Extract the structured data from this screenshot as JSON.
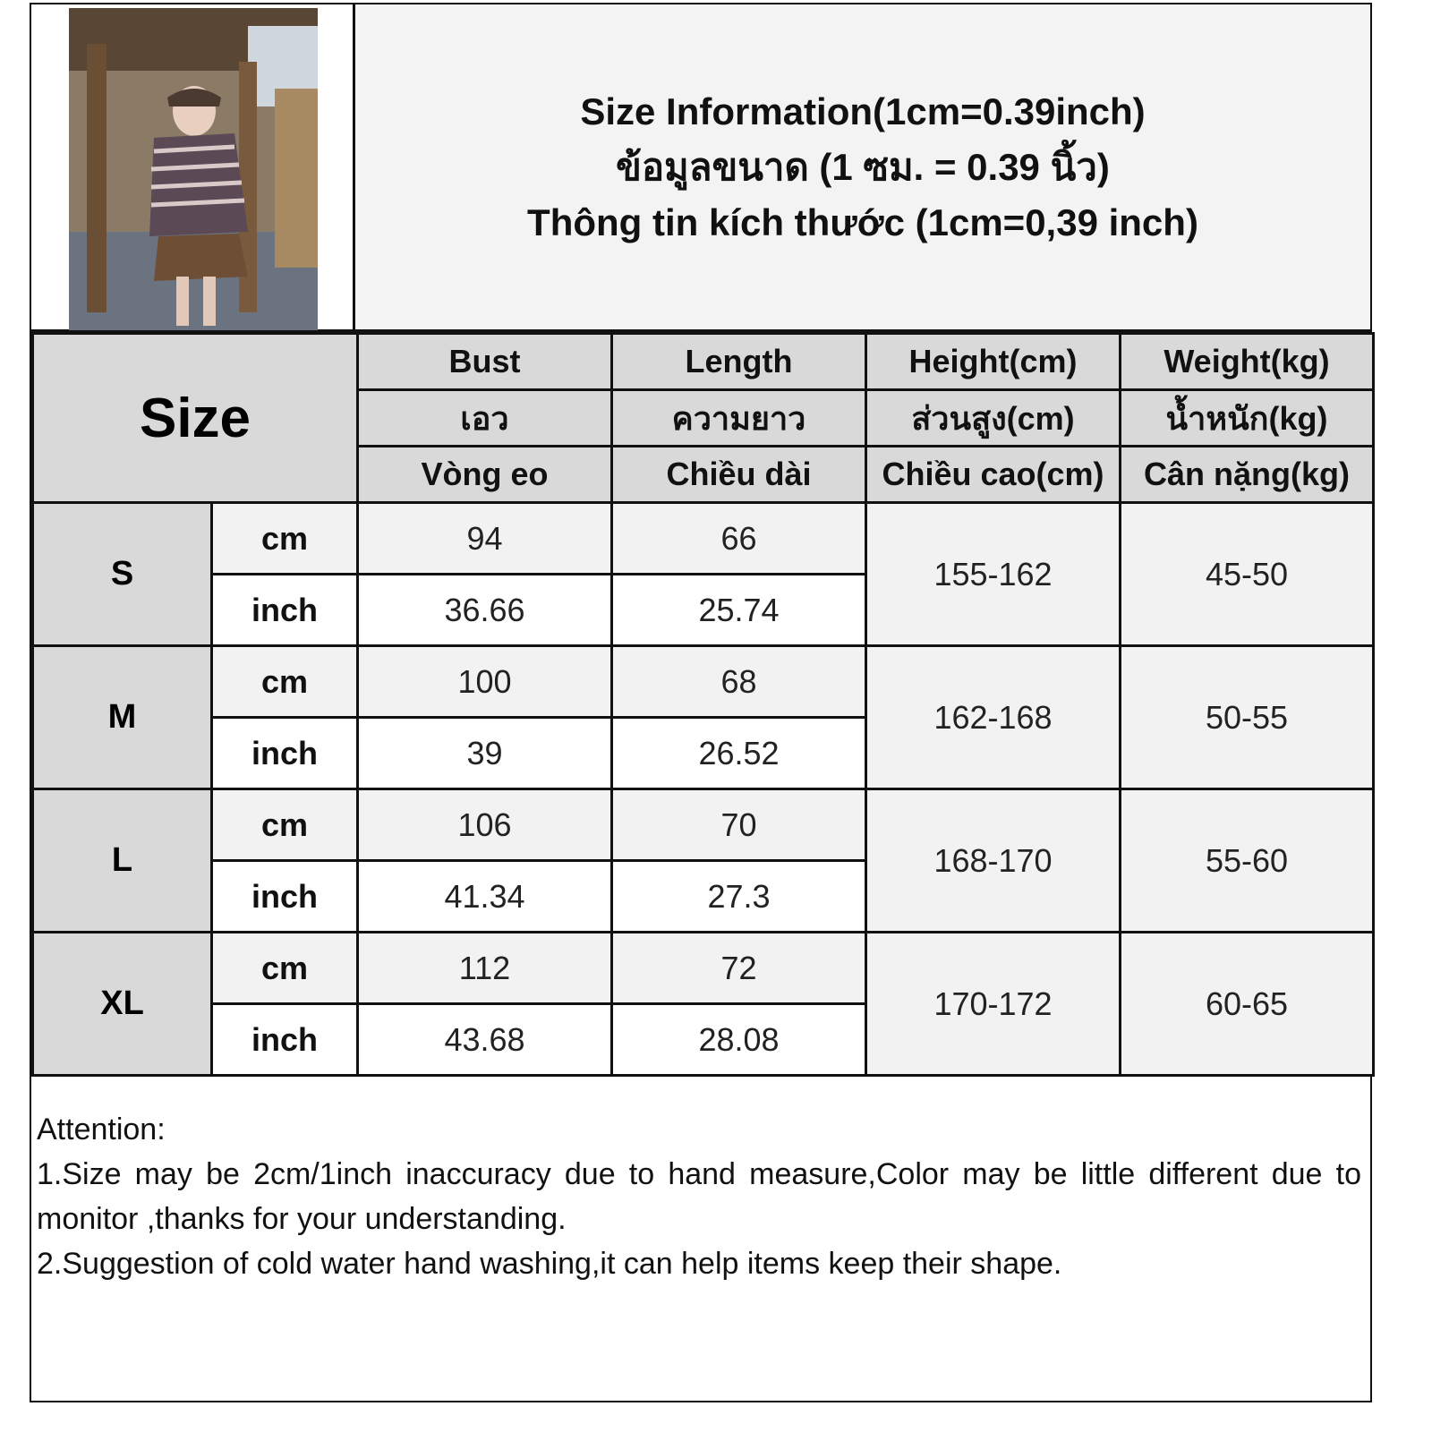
{
  "title": {
    "en": "Size Information(1cm=0.39inch)",
    "th": "ข้อมูลขนาด (1 ซม. = 0.39 นิ้ว)",
    "vi": "Thông tin kích thước (1cm=0,39 inch)"
  },
  "table": {
    "size_label": "Size",
    "columns": [
      {
        "en": "Bust",
        "th": "เอว",
        "vi": "Vòng eo"
      },
      {
        "en": "Length",
        "th": "ความยาว",
        "vi": "Chiều dài"
      },
      {
        "en": "Height(cm)",
        "th": "ส่วนสูง(cm)",
        "vi": "Chiều cao(cm)"
      },
      {
        "en": "Weight(kg)",
        "th": "น้ำหนัก(kg)",
        "vi": "Cân nặng(kg)"
      }
    ],
    "units": {
      "cm": "cm",
      "inch": "inch"
    },
    "rows": [
      {
        "size": "S",
        "bust_cm": "94",
        "length_cm": "66",
        "bust_inch": "36.66",
        "length_inch": "25.74",
        "height": "155-162",
        "weight": "45-50"
      },
      {
        "size": "M",
        "bust_cm": "100",
        "length_cm": "68",
        "bust_inch": "39",
        "length_inch": "26.52",
        "height": "162-168",
        "weight": "50-55"
      },
      {
        "size": "L",
        "bust_cm": "106",
        "length_cm": "70",
        "bust_inch": "41.34",
        "length_inch": "27.3",
        "height": "168-170",
        "weight": "55-60"
      },
      {
        "size": "XL",
        "bust_cm": "112",
        "length_cm": "72",
        "bust_inch": "43.68",
        "length_inch": "28.08",
        "height": "170-172",
        "weight": "60-65"
      }
    ]
  },
  "notes": {
    "heading": "Attention:",
    "line1": "1.Size may be 2cm/1inch inaccuracy due to hand measure,Color may be little different due to monitor ,thanks for your understanding.",
    "line2": "2.Suggestion of cold water hand washing,it can help items keep their shape."
  }
}
